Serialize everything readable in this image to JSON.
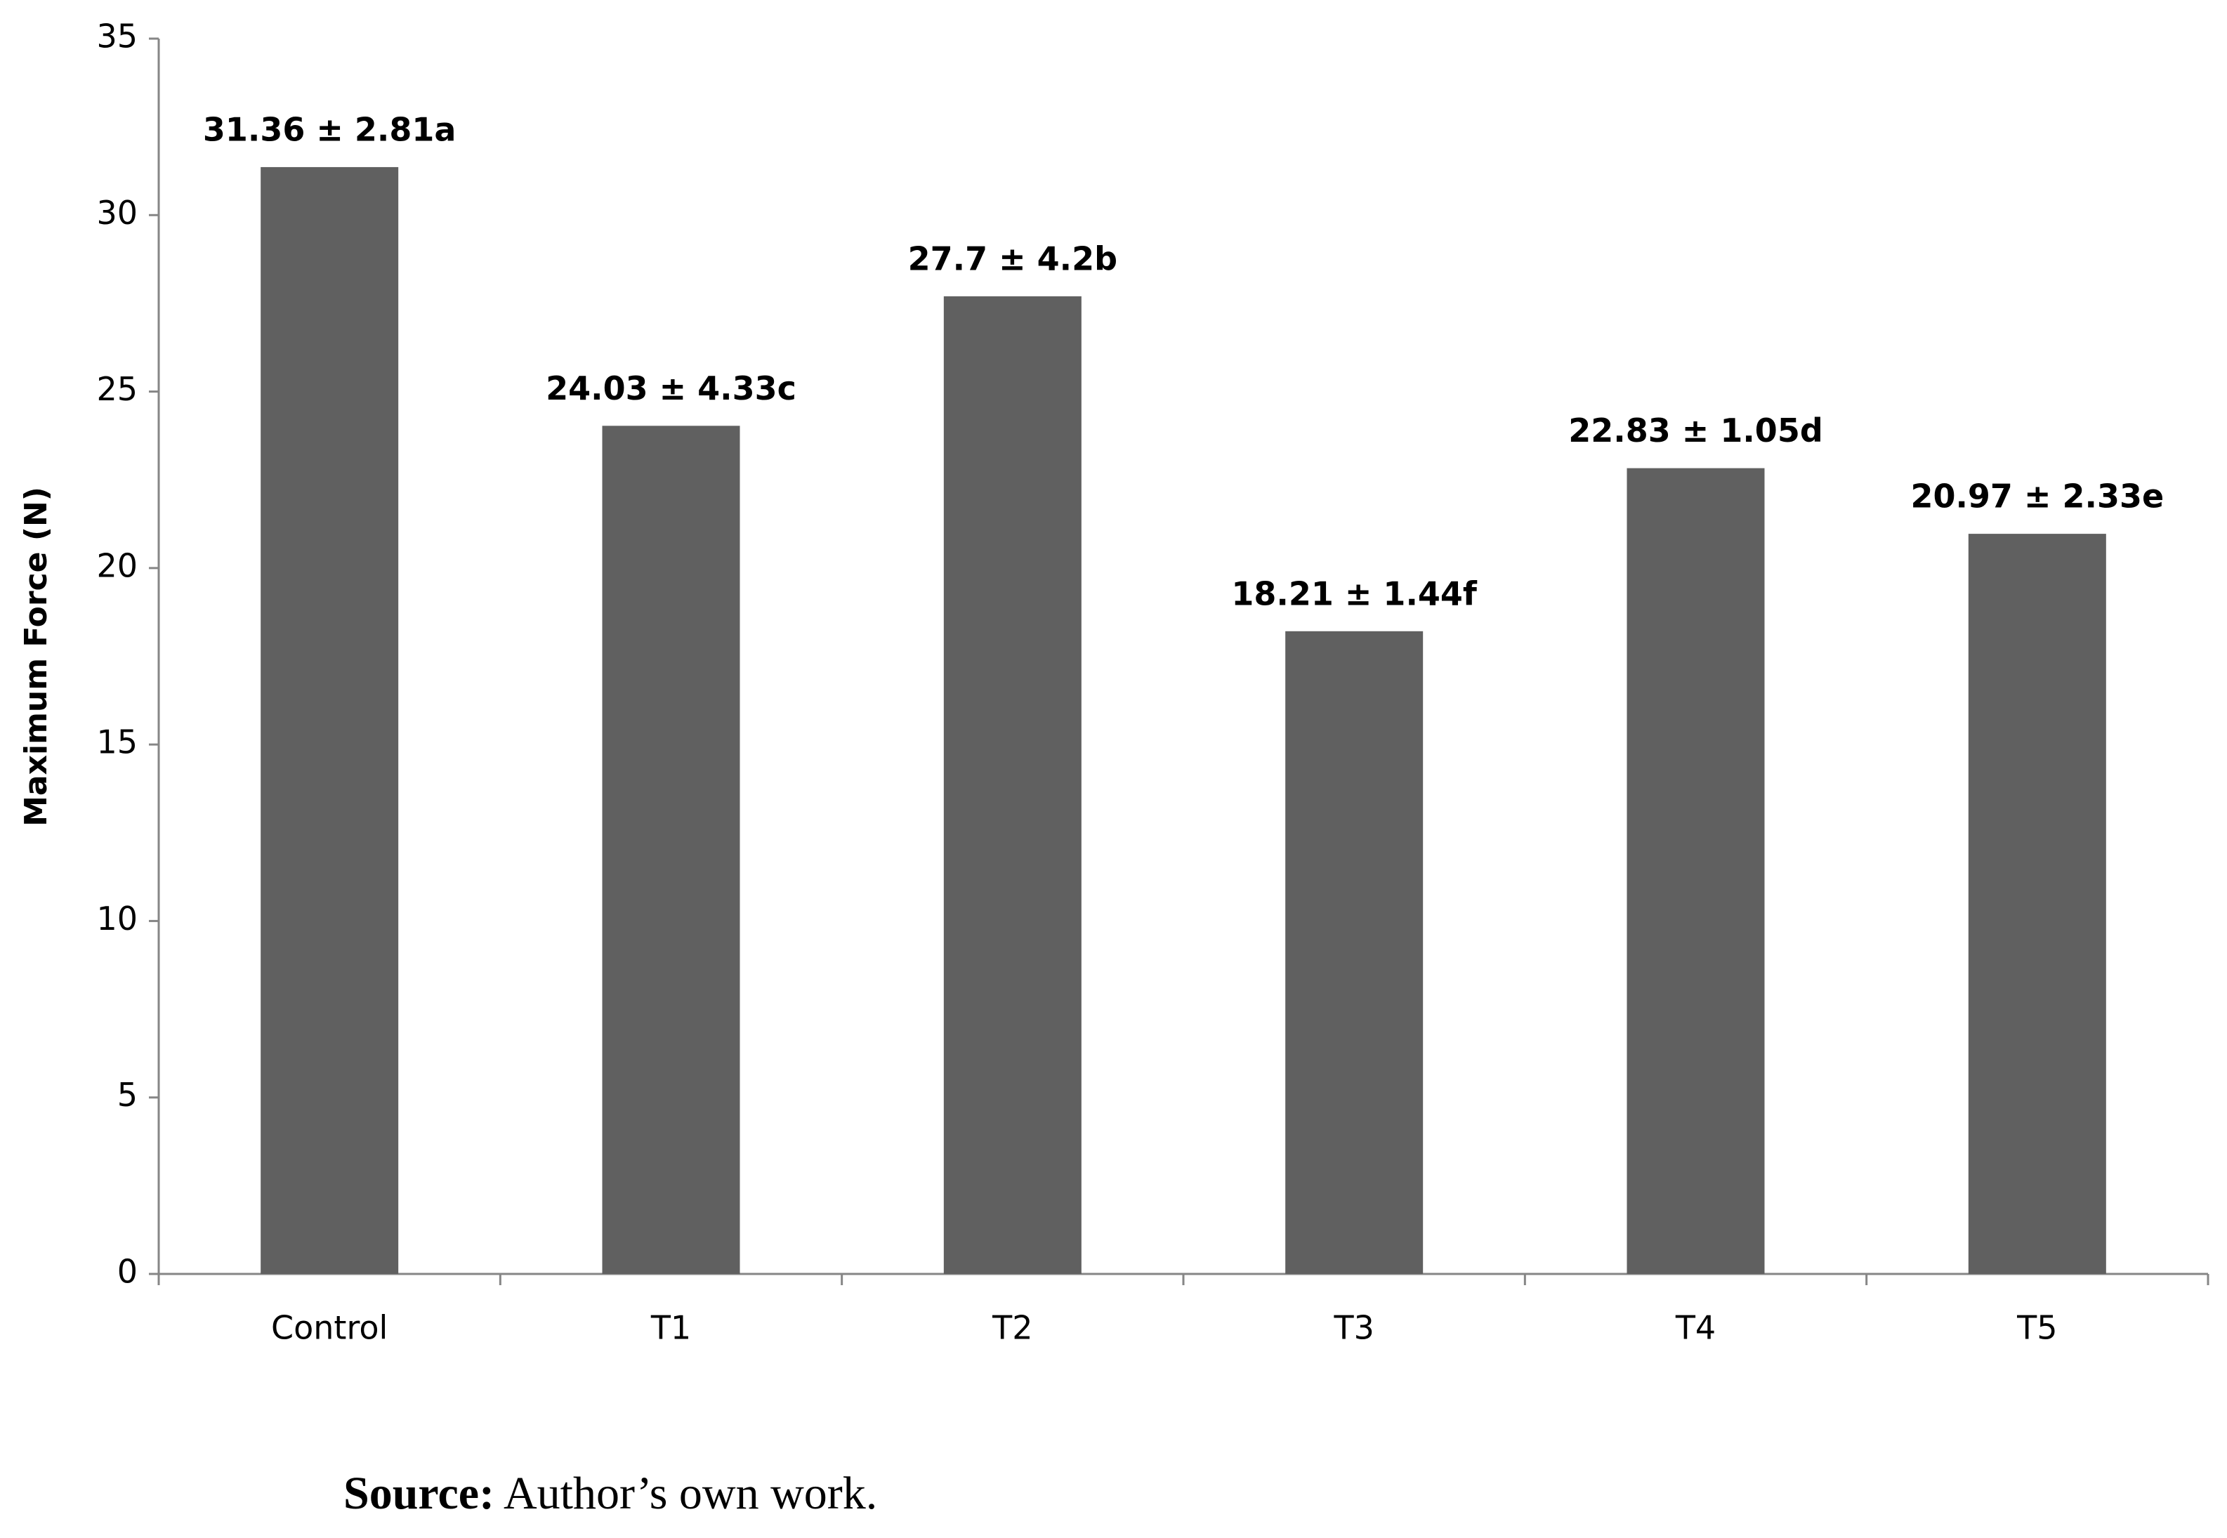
{
  "chart_data": {
    "type": "bar",
    "y_label": "Maximum Force (N)",
    "categories": [
      "Control",
      "T1",
      "T2",
      "T3",
      "T4",
      "T5"
    ],
    "values": [
      31.36,
      24.03,
      27.7,
      18.21,
      22.83,
      20.97
    ],
    "value_labels": [
      "31.36 ± 2.81a",
      "24.03 ± 4.33c",
      "27.7 ± 4.2b",
      "18.21 ± 1.44f",
      "22.83 ± 1.05d",
      "20.97 ± 2.33e"
    ],
    "color": "#606060",
    "ylim": [
      0,
      35
    ],
    "yticks": [
      0,
      5,
      10,
      15,
      20,
      25,
      30,
      35
    ],
    "grid": false
  },
  "caption": {
    "label": "Source:",
    "text": "Author’s own work."
  }
}
